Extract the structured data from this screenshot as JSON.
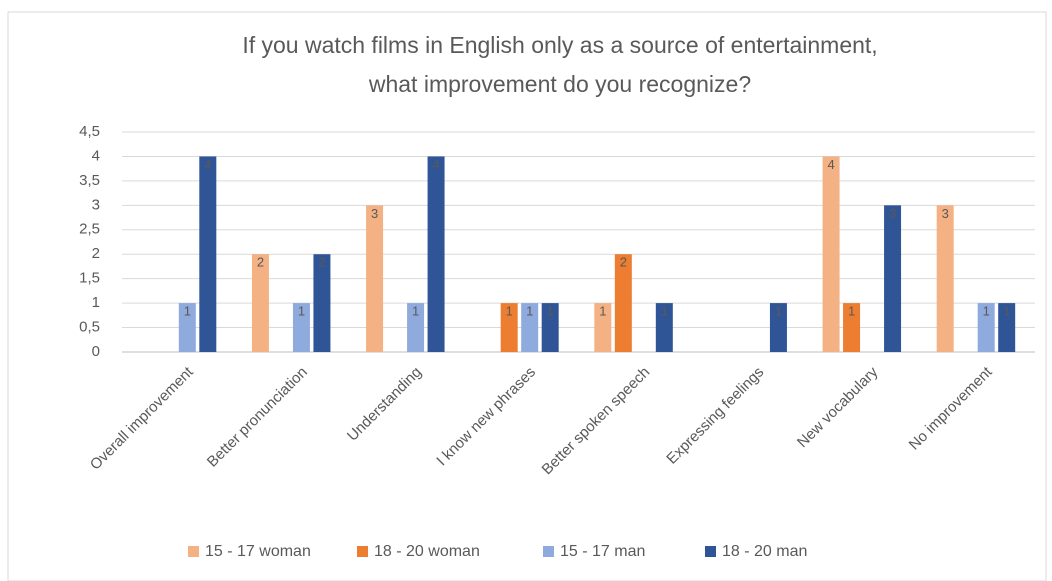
{
  "chart_data": {
    "type": "bar",
    "title": [
      "If you watch films in English only as a source of entertainment,",
      "what improvement do you recognize?"
    ],
    "categories": [
      "Overall improvement",
      "Better pronunciation",
      "Understanding",
      "I know new phrases",
      "Better spoken speech",
      "Expressing feelings",
      "New vocabulary",
      "No improvement"
    ],
    "series": [
      {
        "name": "15 - 17 woman",
        "color": "#f4b183",
        "values": [
          0,
          2,
          3,
          0,
          1,
          0,
          4,
          3
        ]
      },
      {
        "name": "18 - 20 woman",
        "color": "#ed7d31",
        "values": [
          0,
          0,
          0,
          1,
          2,
          0,
          1,
          0
        ]
      },
      {
        "name": "15 - 17 man",
        "color": "#8faadc",
        "values": [
          1,
          1,
          1,
          1,
          0,
          0,
          0,
          1
        ]
      },
      {
        "name": "18 - 20 man",
        "color": "#2f5597",
        "values": [
          4,
          2,
          4,
          1,
          1,
          1,
          3,
          1
        ]
      }
    ],
    "ylim": [
      0,
      4.5
    ],
    "yticks": [
      0,
      {
        "value": 0.5,
        "label": "0,5"
      },
      1,
      {
        "value": 1.5,
        "label": "1,5"
      },
      2,
      {
        "value": 2.5,
        "label": "2,5"
      },
      3,
      {
        "value": 3.5,
        "label": "3,5"
      },
      4,
      {
        "value": 4.5,
        "label": "4,5"
      }
    ],
    "grid": true,
    "legend": "bottom"
  }
}
